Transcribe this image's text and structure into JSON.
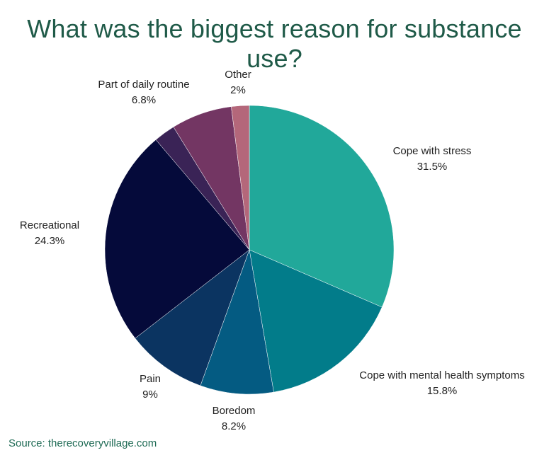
{
  "chart_data": {
    "type": "pie",
    "title": "What was the biggest reason for substance use?",
    "slices": [
      {
        "label": "Cope with stress",
        "value_label": "31.5%",
        "value": 31.5,
        "color": "#21a89a"
      },
      {
        "label": "Cope with mental health symptoms",
        "value_label": "15.8%",
        "value": 15.8,
        "color": "#027c8a"
      },
      {
        "label": "Boredom",
        "value_label": "8.2%",
        "value": 8.2,
        "color": "#045b82"
      },
      {
        "label": "Pain",
        "value_label": "9%",
        "value": 9,
        "color": "#0b3461"
      },
      {
        "label": "Recreational",
        "value_label": "24.3%",
        "value": 24.3,
        "color": "#050a3a"
      },
      {
        "label": "",
        "value_label": "",
        "value": 2.4,
        "color": "#3a2356"
      },
      {
        "label": "Part of daily routine",
        "value_label": "6.8%",
        "value": 6.8,
        "color": "#733663"
      },
      {
        "label": "Other",
        "value_label": "2%",
        "value": 2,
        "color": "#b4677a"
      }
    ]
  },
  "source": "Source: therecoveryvillage.com"
}
